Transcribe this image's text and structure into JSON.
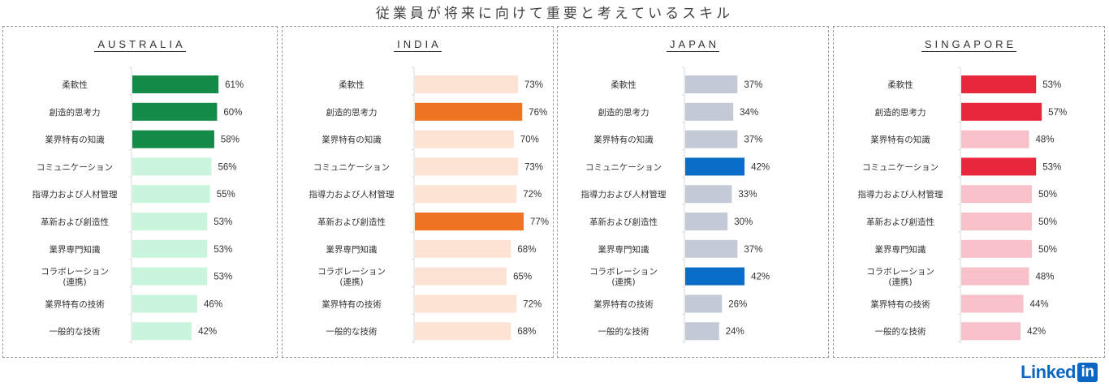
{
  "title": "従業員が将来に向けて重要と考えているスキル",
  "logo": {
    "text": "Linked",
    "box": "in"
  },
  "chart_data": [
    {
      "type": "bar",
      "orientation": "horizontal",
      "title": "AUSTRALIA",
      "categories": [
        "柔軟性",
        "創造的思考力",
        "業界特有の知識",
        "コミュニケーション",
        "指導力および人材管理",
        "革新および創造性",
        "業界専門知識",
        "コラボレーション\n(連携)",
        "業界特有の技術",
        "一般的な技術"
      ],
      "values": [
        61,
        60,
        58,
        56,
        55,
        53,
        53,
        53,
        46,
        42
      ],
      "labels": [
        "61%",
        "60%",
        "58%",
        "56%",
        "55%",
        "53%",
        "53%",
        "53%",
        "46%",
        "42%"
      ],
      "highlight": [
        true,
        true,
        true,
        false,
        false,
        false,
        false,
        false,
        false,
        false
      ],
      "colors": {
        "highlight": "#138a48",
        "normal": "#c8f5dc"
      },
      "unit": "%",
      "xlim": [
        0,
        100
      ]
    },
    {
      "type": "bar",
      "orientation": "horizontal",
      "title": "INDIA",
      "categories": [
        "柔軟性",
        "創造的思考力",
        "業界特有の知識",
        "コミュニケーション",
        "指導力および人材管理",
        "革新および創造性",
        "業界専門知識",
        "コラボレーション\n(連携)",
        "業界特有の技術",
        "一般的な技術"
      ],
      "values": [
        73,
        76,
        70,
        73,
        72,
        77,
        68,
        65,
        72,
        68
      ],
      "labels": [
        "73%",
        "76%",
        "70%",
        "73%",
        "72%",
        "77%",
        "68%",
        "65%",
        "72%",
        "68%"
      ],
      "highlight": [
        false,
        true,
        false,
        false,
        false,
        true,
        false,
        false,
        false,
        false
      ],
      "colors": {
        "highlight": "#ef7421",
        "normal": "#fce3d3"
      },
      "unit": "%",
      "xlim": [
        0,
        100
      ]
    },
    {
      "type": "bar",
      "orientation": "horizontal",
      "title": "JAPAN",
      "categories": [
        "柔軟性",
        "創造的思考力",
        "業界特有の知識",
        "コミュニケーション",
        "指導力および人材管理",
        "革新および創造性",
        "業界専門知識",
        "コラボレーション\n(連携)",
        "業界特有の技術",
        "一般的な技術"
      ],
      "values": [
        37,
        34,
        37,
        42,
        33,
        30,
        37,
        42,
        26,
        24
      ],
      "labels": [
        "37%",
        "34%",
        "37%",
        "42%",
        "33%",
        "30%",
        "37%",
        "42%",
        "26%",
        "24%"
      ],
      "highlight": [
        false,
        false,
        false,
        true,
        false,
        false,
        false,
        true,
        false,
        false
      ],
      "colors": {
        "highlight": "#0a6ec6",
        "normal": "#c3cad5"
      },
      "unit": "%",
      "xlim": [
        0,
        100
      ]
    },
    {
      "type": "bar",
      "orientation": "horizontal",
      "title": "SINGAPORE",
      "categories": [
        "柔軟性",
        "創造的思考力",
        "業界特有の知識",
        "コミュニケーション",
        "指導力および人材管理",
        "革新および創造性",
        "業界専門知識",
        "コラボレーション\n(連携)",
        "業界特有の技術",
        "一般的な技術"
      ],
      "values": [
        53,
        57,
        48,
        53,
        50,
        50,
        50,
        48,
        44,
        42
      ],
      "labels": [
        "53%",
        "57%",
        "48%",
        "53%",
        "50%",
        "50%",
        "50%",
        "48%",
        "44%",
        "42%"
      ],
      "highlight": [
        true,
        true,
        false,
        true,
        false,
        false,
        false,
        false,
        false,
        false
      ],
      "colors": {
        "highlight": "#e8273d",
        "normal": "#f8c1c9"
      },
      "unit": "%",
      "xlim": [
        0,
        100
      ]
    }
  ]
}
